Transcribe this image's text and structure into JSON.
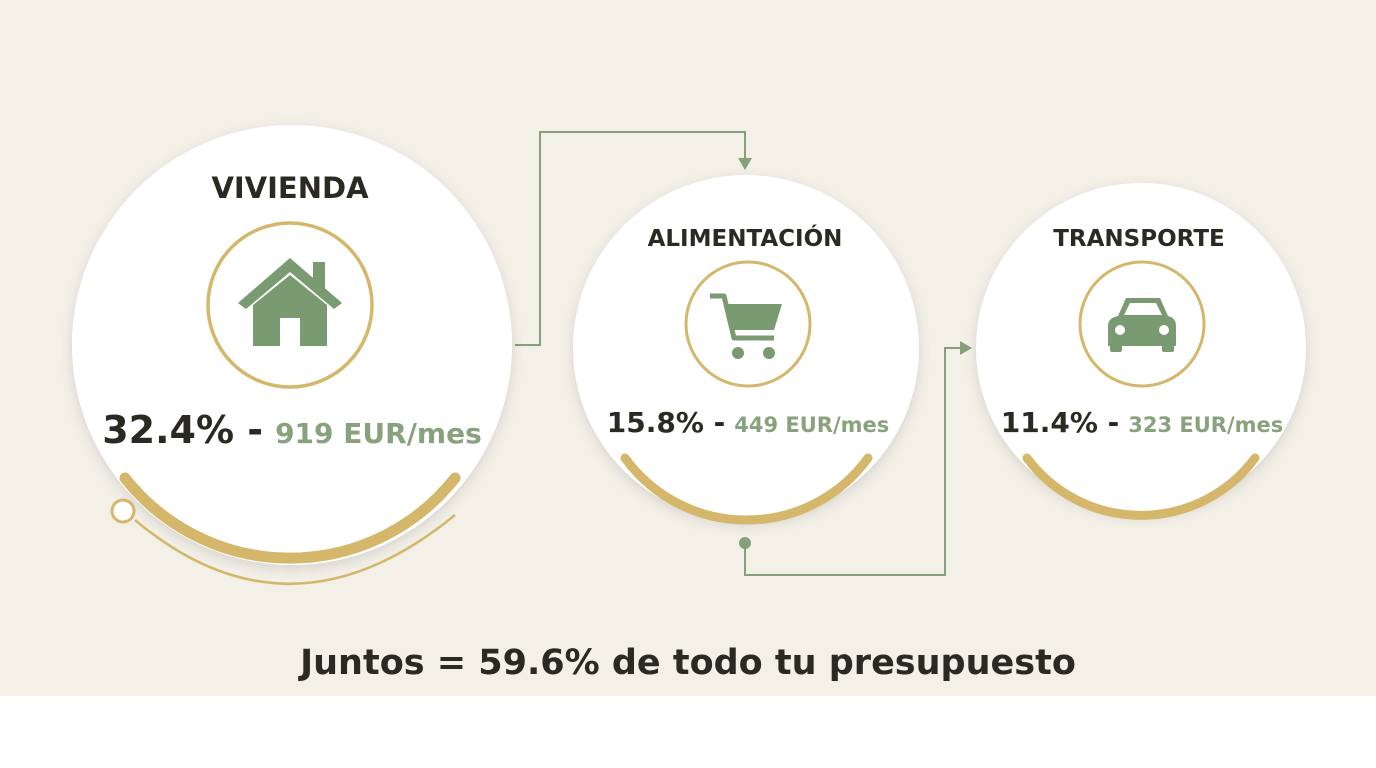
{
  "nodes": [
    {
      "label": "VIVIENDA",
      "percent": "32.4% -",
      "amount": "919 EUR/mes"
    },
    {
      "label": "ALIMENTACIÓN",
      "percent": "15.8% -",
      "amount": "449 EUR/mes"
    },
    {
      "label": "TRANSPORTE",
      "percent": "11.4% -",
      "amount": "323 EUR/mes"
    }
  ],
  "footer": "Juntos = 59.6% de todo tu presupuesto"
}
